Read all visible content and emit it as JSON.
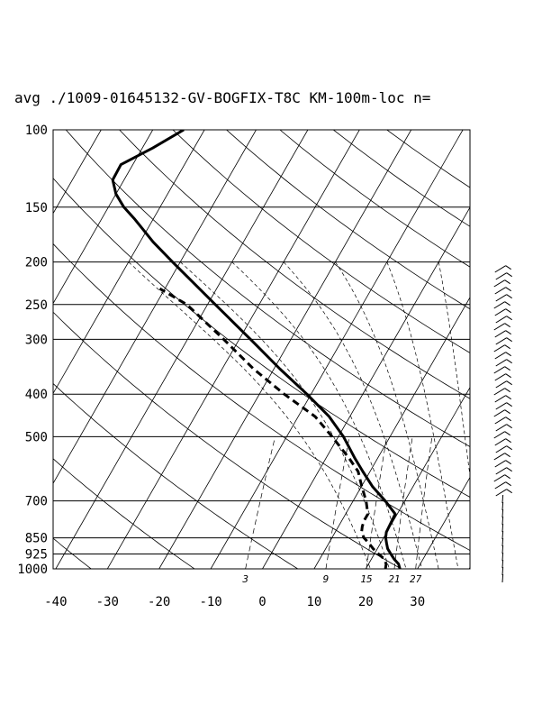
{
  "title": "avg ./1009-01645132-GV-BOGFIX-T8C KM-100m-loc n=",
  "chart_data": {
    "type": "line",
    "subtype": "skew-t log-p sounding",
    "title": "avg ./1009-01645132-GV-BOGFIX-T8C KM-100m-loc n=",
    "xlabel": "",
    "ylabel": "",
    "pressure_scale": "log",
    "xlim": [
      -40,
      40
    ],
    "ylim": [
      1000,
      100
    ],
    "x_ticks": [
      "-40",
      "-30",
      "-20",
      "-10",
      "0",
      "10",
      "20",
      "30"
    ],
    "y_ticks": [
      "100",
      "150",
      "200",
      "250",
      "300",
      "400",
      "500",
      "700",
      "850",
      "925",
      "1000"
    ],
    "mixing_ratio_labels": [
      "3",
      "9",
      "15",
      "21",
      "27"
    ],
    "grid": true,
    "series": [
      {
        "style": "solid",
        "pressure": [
          1000,
          975,
          950,
          925,
          900,
          875,
          850,
          825,
          800,
          775,
          750,
          700,
          650,
          600,
          560,
          500,
          450,
          400,
          350,
          300,
          250,
          200,
          180,
          160,
          150,
          140,
          130,
          120,
          110,
          100
        ],
        "temp_c": [
          26.6,
          25.8,
          24.4,
          23.2,
          22.0,
          21.2,
          20.4,
          19.9,
          19.8,
          19.7,
          19.6,
          16.2,
          12.2,
          8.6,
          5.6,
          1.0,
          -4.0,
          -10.8,
          -18.9,
          -27.8,
          -38.5,
          -51.5,
          -57.5,
          -63.5,
          -67.0,
          -70.0,
          -72.2,
          -72.3,
          -68.0,
          -64.0
        ]
      },
      {
        "style": "dashed",
        "pressure": [
          1000,
          975,
          950,
          925,
          900,
          875,
          850,
          825,
          800,
          775,
          750,
          700,
          650,
          600,
          560,
          500,
          450,
          400,
          350,
          300,
          250,
          230
        ],
        "temp_c": [
          23.8,
          23.4,
          22.5,
          20.8,
          19.2,
          17.8,
          16.2,
          15.1,
          14.6,
          14.3,
          14.3,
          12.5,
          10.1,
          7.7,
          4.5,
          -1.2,
          -6.7,
          -15.2,
          -24.0,
          -33.0,
          -44.0,
          -51.0
        ]
      }
    ]
  }
}
